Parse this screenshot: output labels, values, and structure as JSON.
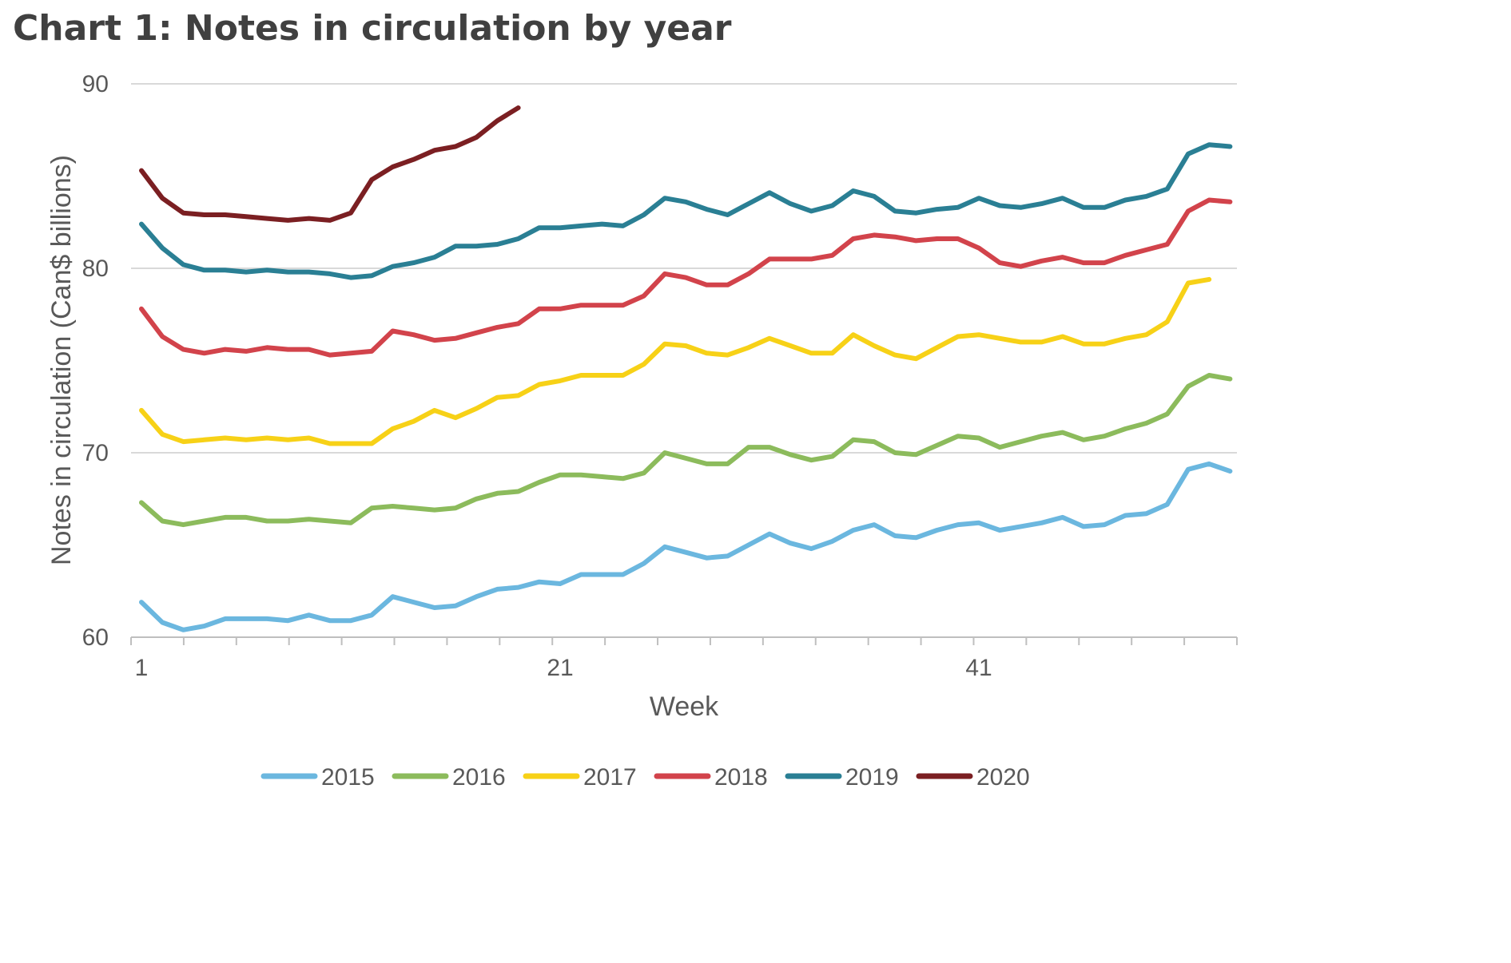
{
  "title": "Chart 1: Notes in circulation by year",
  "chart_data": {
    "type": "line",
    "title": "Chart 1: Notes in circulation by year",
    "xlabel": "Week",
    "ylabel": "Notes in circulation (Can$ billions)",
    "xlim": [
      1,
      53
    ],
    "ylim": [
      60,
      90
    ],
    "x_ticks": [
      1,
      21,
      41
    ],
    "y_ticks": [
      60,
      70,
      80,
      90
    ],
    "grid": "horizontal",
    "legend": "bottom",
    "series": [
      {
        "name": "2015",
        "color": "#6bb7df",
        "values": [
          61.9,
          60.8,
          60.4,
          60.6,
          61.0,
          61.0,
          61.0,
          60.9,
          61.2,
          60.9,
          60.9,
          61.2,
          62.2,
          61.9,
          61.6,
          61.7,
          62.2,
          62.6,
          62.7,
          63.0,
          62.9,
          63.4,
          63.4,
          63.4,
          64.0,
          64.9,
          64.6,
          64.3,
          64.4,
          65.0,
          65.6,
          65.1,
          64.8,
          65.2,
          65.8,
          66.1,
          65.5,
          65.4,
          65.8,
          66.1,
          66.2,
          65.8,
          66.0,
          66.2,
          66.5,
          66.0,
          66.1,
          66.6,
          66.7,
          67.2,
          69.1,
          69.4,
          69.0
        ]
      },
      {
        "name": "2016",
        "color": "#8cbb5c",
        "values": [
          67.3,
          66.3,
          66.1,
          66.3,
          66.5,
          66.5,
          66.3,
          66.3,
          66.4,
          66.3,
          66.2,
          67.0,
          67.1,
          67.0,
          66.9,
          67.0,
          67.5,
          67.8,
          67.9,
          68.4,
          68.8,
          68.8,
          68.7,
          68.6,
          68.9,
          70.0,
          69.7,
          69.4,
          69.4,
          70.3,
          70.3,
          69.9,
          69.6,
          69.8,
          70.7,
          70.6,
          70.0,
          69.9,
          70.4,
          70.9,
          70.8,
          70.3,
          70.6,
          70.9,
          71.1,
          70.7,
          70.9,
          71.3,
          71.6,
          72.1,
          73.6,
          74.2,
          74.0
        ]
      },
      {
        "name": "2017",
        "color": "#f7d117",
        "values": [
          72.3,
          71.0,
          70.6,
          70.7,
          70.8,
          70.7,
          70.8,
          70.7,
          70.8,
          70.5,
          70.5,
          70.5,
          71.3,
          71.7,
          72.3,
          71.9,
          72.4,
          73.0,
          73.1,
          73.7,
          73.9,
          74.2,
          74.2,
          74.2,
          74.8,
          75.9,
          75.8,
          75.4,
          75.3,
          75.7,
          76.2,
          75.8,
          75.4,
          75.4,
          76.4,
          75.8,
          75.3,
          75.1,
          75.7,
          76.3,
          76.4,
          76.2,
          76.0,
          76.0,
          76.3,
          75.9,
          75.9,
          76.2,
          76.4,
          77.1,
          79.2,
          79.4
        ]
      },
      {
        "name": "2018",
        "color": "#d2434b",
        "values": [
          77.8,
          76.3,
          75.6,
          75.4,
          75.6,
          75.5,
          75.7,
          75.6,
          75.6,
          75.3,
          75.4,
          75.5,
          76.6,
          76.4,
          76.1,
          76.2,
          76.5,
          76.8,
          77.0,
          77.8,
          77.8,
          78.0,
          78.0,
          78.0,
          78.5,
          79.7,
          79.5,
          79.1,
          79.1,
          79.7,
          80.5,
          80.5,
          80.5,
          80.7,
          81.6,
          81.8,
          81.7,
          81.5,
          81.6,
          81.6,
          81.1,
          80.3,
          80.1,
          80.4,
          80.6,
          80.3,
          80.3,
          80.7,
          81.0,
          81.3,
          83.1,
          83.7,
          83.6
        ]
      },
      {
        "name": "2019",
        "color": "#2a7f94",
        "values": [
          82.4,
          81.1,
          80.2,
          79.9,
          79.9,
          79.8,
          79.9,
          79.8,
          79.8,
          79.7,
          79.5,
          79.6,
          80.1,
          80.3,
          80.6,
          81.2,
          81.2,
          81.3,
          81.6,
          82.2,
          82.2,
          82.3,
          82.4,
          82.3,
          82.9,
          83.8,
          83.6,
          83.2,
          82.9,
          83.5,
          84.1,
          83.5,
          83.1,
          83.4,
          84.2,
          83.9,
          83.1,
          83.0,
          83.2,
          83.3,
          83.8,
          83.4,
          83.3,
          83.5,
          83.8,
          83.3,
          83.3,
          83.7,
          83.9,
          84.3,
          86.2,
          86.7,
          86.6
        ]
      },
      {
        "name": "2020",
        "color": "#7b1f22",
        "values": [
          85.3,
          83.8,
          83.0,
          82.9,
          82.9,
          82.8,
          82.7,
          82.6,
          82.7,
          82.6,
          83.0,
          84.8,
          85.5,
          85.9,
          86.4,
          86.6,
          87.1,
          88.0,
          88.7
        ]
      }
    ]
  }
}
